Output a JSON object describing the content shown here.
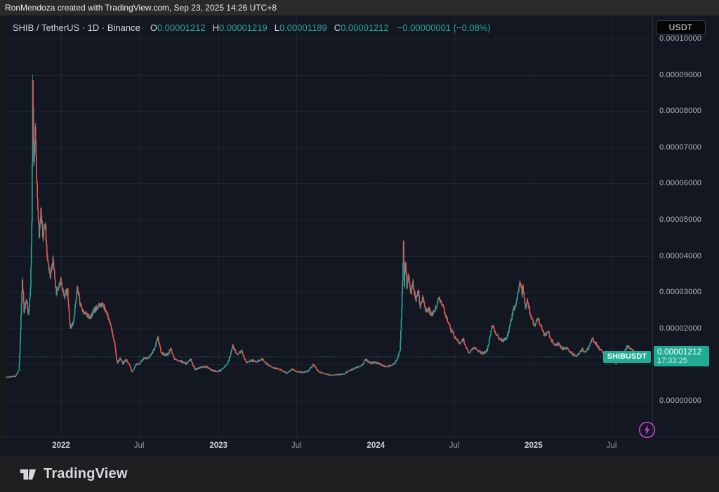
{
  "attribution": {
    "text": "RonMendoza created with TradingView.com, Sep 23, 2025 14:26 UTC+8"
  },
  "legend": {
    "title": "SHIB / TetherUS · 1D · Binance",
    "items": [
      {
        "label": "O",
        "value": "0.00001212"
      },
      {
        "label": "H",
        "value": "0.00001219"
      },
      {
        "label": "L",
        "value": "0.00001189"
      },
      {
        "label": "C",
        "value": "0.00001212"
      }
    ],
    "change": "−0.00000001 (−0.08%)"
  },
  "axis": {
    "currency_button": "USDT"
  },
  "price_label": {
    "symbol_tag": "SHIBUSDT",
    "price": "0.00001212",
    "countdown": "17:33:25"
  },
  "footer": {
    "brand": "TradingView"
  },
  "icons": {
    "boost": "lightning-bolt-circle",
    "logo": "tradingview-mark"
  },
  "colors": {
    "up": "#26a69a",
    "down": "#ef5350",
    "accent_teal": "#22ab94",
    "chart_bg": "#131722",
    "grid": "rgba(151,159,185,0.10)",
    "axis_text": "#b2b5be",
    "separator": "#2a2e39",
    "boost_purple": "#b845c9",
    "price_line": "#26a69a"
  },
  "chart_data": {
    "type": "candlestick",
    "symbol": "SHIB/USDT",
    "exchange": "Binance",
    "interval": "1D",
    "title": "SHIB / TetherUS · 1D · Binance",
    "current_price": 1.212e-05,
    "current_ohlc": {
      "open": 1.212e-05,
      "high": 1.219e-05,
      "low": 1.189e-05,
      "close": 1.212e-05,
      "change": -1e-08,
      "change_pct": -0.08
    },
    "y_axis": {
      "min": 0,
      "max": 0.0001,
      "tick_step": 1e-05,
      "visible_tick_labels": [
        "0.00010000",
        "0.00009000",
        "0.00008000",
        "0.00007000",
        "0.00006000",
        "0.00005000",
        "0.00004000",
        "0.00003000",
        "0.00002000",
        "0.00000000"
      ]
    },
    "x_axis": {
      "range": [
        "2021-08-25",
        "2025-09-23"
      ],
      "ticks": [
        {
          "label": "2022",
          "date": "2022-01-01",
          "major": true
        },
        {
          "label": "Jul",
          "date": "2022-07-01",
          "major": false
        },
        {
          "label": "2023",
          "date": "2023-01-01",
          "major": true
        },
        {
          "label": "Jul",
          "date": "2023-07-01",
          "major": false
        },
        {
          "label": "2024",
          "date": "2024-01-01",
          "major": true
        },
        {
          "label": "Jul",
          "date": "2024-07-01",
          "major": false
        },
        {
          "label": "2025",
          "date": "2025-01-01",
          "major": true
        },
        {
          "label": "Jul",
          "date": "2025-07-01",
          "major": false
        }
      ]
    },
    "grid": true,
    "legend_position": "top-left",
    "keyframes": [
      [
        "2021-08-25",
        6.5e-06
      ],
      [
        "2021-09-18",
        6.8e-06
      ],
      [
        "2021-09-26",
        8.5e-06
      ],
      [
        "2021-10-01",
        2.4e-05
      ],
      [
        "2021-10-04",
        3.4e-05
      ],
      [
        "2021-10-08",
        2.5e-05
      ],
      [
        "2021-10-13",
        2.8e-05
      ],
      [
        "2021-10-18",
        2.4e-05
      ],
      [
        "2021-10-23",
        3.1e-05
      ],
      [
        "2021-10-26",
        4.9e-05
      ],
      [
        "2021-10-28",
        8.85e-05
      ],
      [
        "2021-10-31",
        6.5e-05
      ],
      [
        "2021-11-03",
        7.4e-05
      ],
      [
        "2021-11-08",
        5.6e-05
      ],
      [
        "2021-11-12",
        4.6e-05
      ],
      [
        "2021-11-16",
        5.3e-05
      ],
      [
        "2021-11-21",
        4.5e-05
      ],
      [
        "2021-11-26",
        5e-05
      ],
      [
        "2021-12-02",
        3.8e-05
      ],
      [
        "2021-12-08",
        3.4e-05
      ],
      [
        "2021-12-14",
        3.9e-05
      ],
      [
        "2021-12-22",
        3e-05
      ],
      [
        "2022-01-01",
        3.3e-05
      ],
      [
        "2022-01-10",
        2.9e-05
      ],
      [
        "2022-01-17",
        3.1e-05
      ],
      [
        "2022-01-23",
        2e-05
      ],
      [
        "2022-01-31",
        2.2e-05
      ],
      [
        "2022-02-08",
        3.1e-05
      ],
      [
        "2022-02-17",
        2.6e-05
      ],
      [
        "2022-02-27",
        2.4e-05
      ],
      [
        "2022-03-10",
        2.3e-05
      ],
      [
        "2022-03-20",
        2.5e-05
      ],
      [
        "2022-03-30",
        2.6e-05
      ],
      [
        "2022-04-08",
        2.7e-05
      ],
      [
        "2022-04-18",
        2.4e-05
      ],
      [
        "2022-04-27",
        2.1e-05
      ],
      [
        "2022-05-06",
        1.6e-05
      ],
      [
        "2022-05-12",
        1.04e-05
      ],
      [
        "2022-05-19",
        1.17e-05
      ],
      [
        "2022-05-25",
        1.03e-05
      ],
      [
        "2022-06-01",
        1.14e-05
      ],
      [
        "2022-06-09",
        1e-05
      ],
      [
        "2022-06-15",
        8e-06
      ],
      [
        "2022-06-23",
        9.8e-06
      ],
      [
        "2022-07-02",
        1.03e-05
      ],
      [
        "2022-07-12",
        1.16e-05
      ],
      [
        "2022-07-24",
        1.2e-05
      ],
      [
        "2022-08-05",
        1.4e-05
      ],
      [
        "2022-08-14",
        1.76e-05
      ],
      [
        "2022-08-22",
        1.33e-05
      ],
      [
        "2022-08-30",
        1.26e-05
      ],
      [
        "2022-09-08",
        1.3e-05
      ],
      [
        "2022-09-13",
        1.46e-05
      ],
      [
        "2022-09-22",
        1.15e-05
      ],
      [
        "2022-10-05",
        1.1e-05
      ],
      [
        "2022-10-20",
        1.02e-05
      ],
      [
        "2022-10-29",
        1.16e-05
      ],
      [
        "2022-11-09",
        8.6e-06
      ],
      [
        "2022-11-22",
        9.2e-06
      ],
      [
        "2022-12-05",
        9.4e-06
      ],
      [
        "2022-12-18",
        8.4e-06
      ],
      [
        "2023-01-01",
        8.1e-06
      ],
      [
        "2023-01-14",
        8.9e-06
      ],
      [
        "2023-01-25",
        1.1e-05
      ],
      [
        "2023-02-04",
        1.51e-05
      ],
      [
        "2023-02-14",
        1.28e-05
      ],
      [
        "2023-02-24",
        1.38e-05
      ],
      [
        "2023-03-08",
        1.05e-05
      ],
      [
        "2023-03-20",
        1.11e-05
      ],
      [
        "2023-04-02",
        1.08e-05
      ],
      [
        "2023-04-14",
        1.16e-05
      ],
      [
        "2023-04-26",
        9.9e-06
      ],
      [
        "2023-05-10",
        9.1e-06
      ],
      [
        "2023-05-24",
        8.7e-06
      ],
      [
        "2023-06-08",
        7.7e-06
      ],
      [
        "2023-06-22",
        8.7e-06
      ],
      [
        "2023-07-04",
        8.1e-06
      ],
      [
        "2023-07-16",
        7.9e-06
      ],
      [
        "2023-07-28",
        8.1e-06
      ],
      [
        "2023-08-10",
        1e-05
      ],
      [
        "2023-08-24",
        7.9e-06
      ],
      [
        "2023-09-08",
        7.3e-06
      ],
      [
        "2023-09-22",
        7.1e-06
      ],
      [
        "2023-10-06",
        7.2e-06
      ],
      [
        "2023-10-20",
        7.5e-06
      ],
      [
        "2023-11-03",
        8.4e-06
      ],
      [
        "2023-11-17",
        9.1e-06
      ],
      [
        "2023-12-01",
        1e-05
      ],
      [
        "2023-12-10",
        1.14e-05
      ],
      [
        "2023-12-20",
        1.04e-05
      ],
      [
        "2024-01-01",
        1.07e-05
      ],
      [
        "2024-01-12",
        1.01e-05
      ],
      [
        "2024-01-24",
        9.4e-06
      ],
      [
        "2024-02-05",
        9.7e-06
      ],
      [
        "2024-02-16",
        1.05e-05
      ],
      [
        "2024-02-27",
        1.38e-05
      ],
      [
        "2024-03-01",
        2.25e-05
      ],
      [
        "2024-03-04",
        3.35e-05
      ],
      [
        "2024-03-06",
        4.5e-05
      ],
      [
        "2024-03-08",
        3.25e-05
      ],
      [
        "2024-03-11",
        3.85e-05
      ],
      [
        "2024-03-14",
        3.15e-05
      ],
      [
        "2024-03-18",
        3.5e-05
      ],
      [
        "2024-03-23",
        2.97e-05
      ],
      [
        "2024-03-28",
        3.26e-05
      ],
      [
        "2024-04-03",
        2.77e-05
      ],
      [
        "2024-04-09",
        3.06e-05
      ],
      [
        "2024-04-14",
        2.57e-05
      ],
      [
        "2024-04-20",
        2.86e-05
      ],
      [
        "2024-04-27",
        2.48e-05
      ],
      [
        "2024-05-04",
        2.52e-05
      ],
      [
        "2024-05-12",
        2.38e-05
      ],
      [
        "2024-05-20",
        2.58e-05
      ],
      [
        "2024-05-28",
        2.82e-05
      ],
      [
        "2024-06-05",
        2.62e-05
      ],
      [
        "2024-06-14",
        2.28e-05
      ],
      [
        "2024-06-24",
        1.96e-05
      ],
      [
        "2024-07-04",
        1.74e-05
      ],
      [
        "2024-07-14",
        1.58e-05
      ],
      [
        "2024-07-22",
        1.7e-05
      ],
      [
        "2024-08-05",
        1.29e-05
      ],
      [
        "2024-08-15",
        1.48e-05
      ],
      [
        "2024-08-25",
        1.39e-05
      ],
      [
        "2024-09-06",
        1.31e-05
      ],
      [
        "2024-09-16",
        1.39e-05
      ],
      [
        "2024-09-28",
        2.12e-05
      ],
      [
        "2024-10-06",
        1.84e-05
      ],
      [
        "2024-10-15",
        1.71e-05
      ],
      [
        "2024-10-24",
        1.67e-05
      ],
      [
        "2024-11-02",
        1.78e-05
      ],
      [
        "2024-11-10",
        2.18e-05
      ],
      [
        "2024-11-16",
        2.52e-05
      ],
      [
        "2024-11-22",
        2.68e-05
      ],
      [
        "2024-12-02",
        3.28e-05
      ],
      [
        "2024-12-06",
        2.98e-05
      ],
      [
        "2024-12-08",
        3.15e-05
      ],
      [
        "2024-12-14",
        2.58e-05
      ],
      [
        "2024-12-19",
        2.78e-05
      ],
      [
        "2024-12-28",
        2.24e-05
      ],
      [
        "2025-01-05",
        2.08e-05
      ],
      [
        "2025-01-12",
        2.28e-05
      ],
      [
        "2025-01-20",
        2.03e-05
      ],
      [
        "2025-01-28",
        1.78e-05
      ],
      [
        "2025-02-04",
        1.93e-05
      ],
      [
        "2025-02-12",
        1.68e-05
      ],
      [
        "2025-02-20",
        1.53e-05
      ],
      [
        "2025-03-01",
        1.58e-05
      ],
      [
        "2025-03-10",
        1.43e-05
      ],
      [
        "2025-03-20",
        1.48e-05
      ],
      [
        "2025-03-30",
        1.33e-05
      ],
      [
        "2025-04-08",
        1.23e-05
      ],
      [
        "2025-04-16",
        1.28e-05
      ],
      [
        "2025-04-24",
        1.43e-05
      ],
      [
        "2025-05-02",
        1.33e-05
      ],
      [
        "2025-05-10",
        1.48e-05
      ],
      [
        "2025-05-18",
        1.7e-05
      ],
      [
        "2025-05-26",
        1.58e-05
      ],
      [
        "2025-06-04",
        1.43e-05
      ],
      [
        "2025-06-12",
        1.33e-05
      ],
      [
        "2025-06-20",
        1.26e-05
      ],
      [
        "2025-06-28",
        1.16e-05
      ],
      [
        "2025-07-06",
        1.1e-05
      ],
      [
        "2025-07-14",
        1.03e-05
      ],
      [
        "2025-07-22",
        1.18e-05
      ],
      [
        "2025-07-30",
        1.33e-05
      ],
      [
        "2025-08-08",
        1.52e-05
      ],
      [
        "2025-08-16",
        1.43e-05
      ],
      [
        "2025-08-24",
        1.33e-05
      ],
      [
        "2025-09-02",
        1.28e-05
      ],
      [
        "2025-09-10",
        1.23e-05
      ],
      [
        "2025-09-17",
        1.2e-05
      ],
      [
        "2025-09-23",
        1.212e-05
      ]
    ]
  }
}
